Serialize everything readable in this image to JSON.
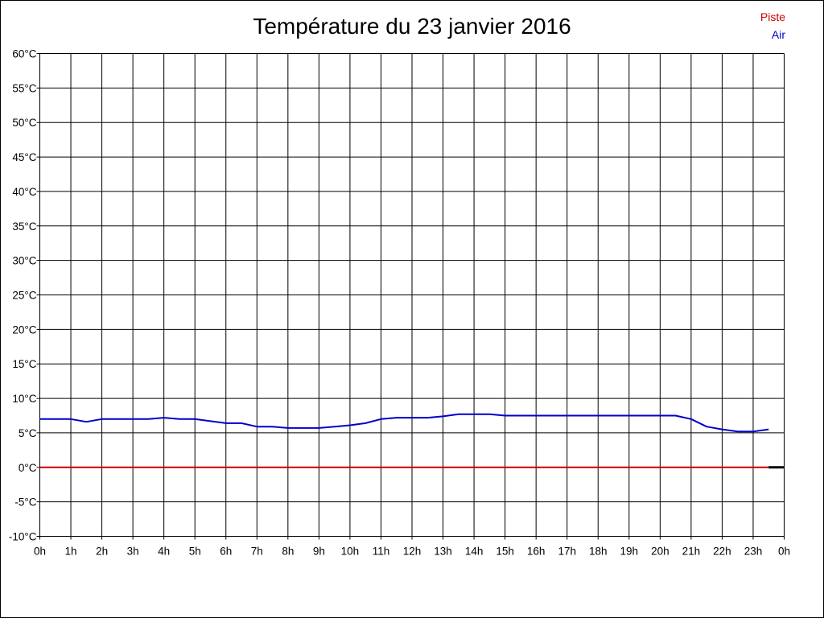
{
  "chart_data": {
    "type": "line",
    "title": "Température du 23 janvier 2016",
    "x_ticks": [
      "0h",
      "1h",
      "2h",
      "3h",
      "4h",
      "5h",
      "6h",
      "7h",
      "8h",
      "9h",
      "10h",
      "11h",
      "12h",
      "13h",
      "14h",
      "15h",
      "16h",
      "17h",
      "18h",
      "19h",
      "20h",
      "21h",
      "22h",
      "23h",
      "0h"
    ],
    "y_ticks": [
      "60°C",
      "55°C",
      "50°C",
      "45°C",
      "40°C",
      "35°C",
      "30°C",
      "25°C",
      "20°C",
      "15°C",
      "10°C",
      "5°C",
      "0°C",
      "-5°C",
      "-10°C"
    ],
    "xlim": [
      0,
      24
    ],
    "ylim": [
      -10,
      60
    ],
    "grid": true,
    "legend_placement": "top-right",
    "series": [
      {
        "name": "Piste",
        "color": "#cc0000",
        "x": [
          0,
          23.5
        ],
        "values": [
          0,
          0
        ]
      },
      {
        "name": "Air",
        "color": "#0000cc",
        "x": [
          0,
          1,
          1.5,
          2,
          3,
          3.5,
          4,
          4.5,
          5,
          6,
          6.5,
          7,
          7.5,
          8,
          9,
          9.5,
          10,
          10.5,
          11,
          11.5,
          12,
          12.5,
          13,
          13.5,
          14,
          14.5,
          15,
          16,
          17,
          18,
          19,
          20,
          20.5,
          21,
          21.5,
          22,
          22.5,
          23,
          23.5
        ],
        "values": [
          7,
          7,
          6.6,
          7,
          7,
          7,
          7.2,
          7,
          7,
          6.4,
          6.4,
          5.9,
          5.9,
          5.7,
          5.7,
          5.9,
          6.1,
          6.4,
          7,
          7.2,
          7.2,
          7.2,
          7.4,
          7.7,
          7.7,
          7.7,
          7.5,
          7.5,
          7.5,
          7.5,
          7.5,
          7.5,
          7.5,
          7,
          5.9,
          5.5,
          5.2,
          5.2,
          5.5
        ]
      }
    ]
  }
}
